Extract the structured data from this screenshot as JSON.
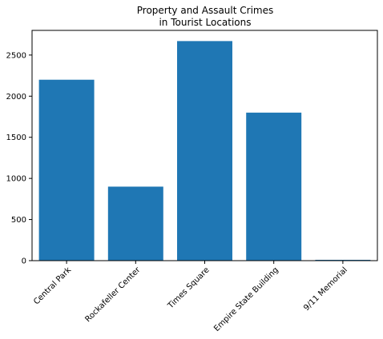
{
  "chart_data": {
    "type": "bar",
    "title_lines": [
      "Property and Assault Crimes",
      "in Tourist Locations"
    ],
    "xlabel": "",
    "ylabel": "",
    "categories": [
      "Central Park",
      "Rockafeller Center",
      "Times Square",
      "Empire State Building",
      "9/11 Memorial"
    ],
    "values": [
      2200,
      900,
      2670,
      1800,
      10
    ],
    "ylim": [
      0,
      2800
    ],
    "yticks": [
      0,
      500,
      1000,
      1500,
      2000,
      2500
    ],
    "bar_color": "#1f77b4",
    "grid": false,
    "legend": "none"
  }
}
